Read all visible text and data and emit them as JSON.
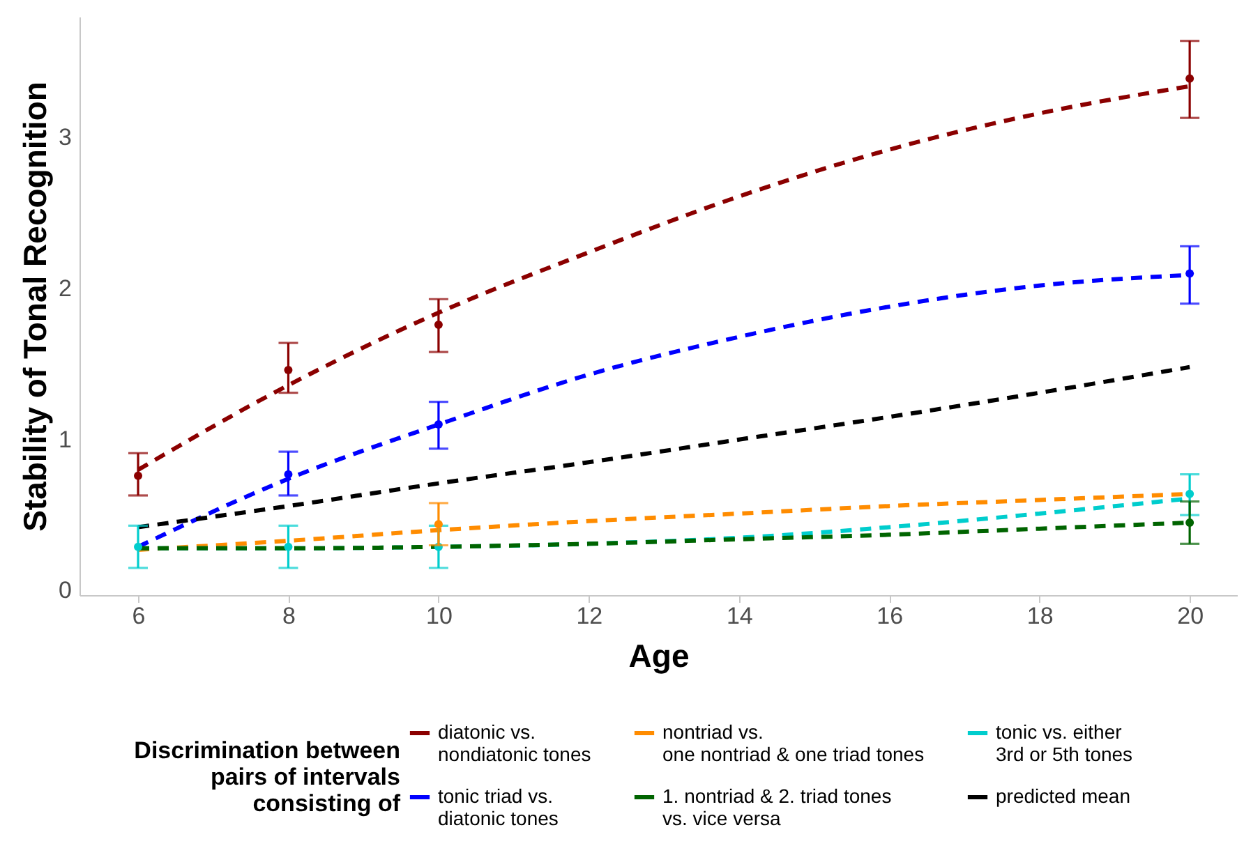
{
  "chart_data": {
    "type": "line",
    "xlabel": "Age",
    "ylabel": "Stability of Tonal Recognition",
    "legend_title": "Discrimination between pairs of intervals consisting of",
    "legend": "bottom",
    "grid": false,
    "xlim": [
      5.22,
      20.63
    ],
    "ylim": [
      -0.03,
      3.8
    ],
    "xticks": [
      6,
      8,
      10,
      12,
      14,
      16,
      18,
      20
    ],
    "yticks": [
      0,
      1,
      2,
      3
    ],
    "series": [
      {
        "type": "line",
        "name": "diatonic vs.\nnondiatonic tones",
        "color": "#8b0000",
        "line_style": "dashed",
        "x": [
          6,
          8,
          10,
          12,
          14,
          16,
          18,
          20
        ],
        "values": [
          0.8,
          1.36,
          1.84,
          2.24,
          2.61,
          2.92,
          3.16,
          3.34
        ]
      },
      {
        "type": "line",
        "name": "nontriad vs.\none nontriad & one triad tones",
        "color": "#ff8c00",
        "line_style": "dashed",
        "x": [
          6,
          8,
          10,
          12,
          14,
          16,
          18,
          20
        ],
        "values": [
          0.27,
          0.33,
          0.4,
          0.46,
          0.51,
          0.56,
          0.6,
          0.64
        ]
      },
      {
        "type": "line",
        "name": "tonic vs. either\n3rd or 5th tones",
        "color": "#00cdcd",
        "line_style": "dashed",
        "x": [
          6,
          8,
          10,
          12,
          14,
          16,
          18,
          20
        ],
        "values": [
          0.28,
          0.28,
          0.29,
          0.31,
          0.35,
          0.42,
          0.51,
          0.61
        ]
      },
      {
        "type": "line",
        "name": "tonic triad vs.\ndiatonic tones",
        "color": "#0000ff",
        "line_style": "dashed",
        "x": [
          6,
          8,
          10,
          12,
          14,
          16,
          18,
          20
        ],
        "values": [
          0.29,
          0.74,
          1.1,
          1.43,
          1.68,
          1.88,
          2.02,
          2.09
        ]
      },
      {
        "type": "line",
        "name": "1. nontriad & 2. triad tones\nvs. vice versa",
        "color": "#006400",
        "line_style": "dashed",
        "x": [
          6,
          8,
          10,
          12,
          14,
          16,
          18,
          20
        ],
        "values": [
          0.28,
          0.28,
          0.29,
          0.31,
          0.34,
          0.37,
          0.41,
          0.45
        ]
      },
      {
        "type": "line",
        "name": "predicted mean",
        "color": "#000000",
        "line_style": "dashed",
        "x": [
          6,
          8,
          10,
          12,
          14,
          16,
          18,
          20
        ],
        "values": [
          0.42,
          0.56,
          0.71,
          0.85,
          1.0,
          1.15,
          1.31,
          1.48
        ]
      },
      {
        "type": "scatter",
        "color": "#8b0000",
        "marker": "circle",
        "x": [
          6,
          8,
          10,
          20
        ],
        "values": [
          0.76,
          1.46,
          1.76,
          3.39
        ],
        "errors": [
          [
            0.63,
            0.91
          ],
          [
            1.31,
            1.64
          ],
          [
            1.58,
            1.93
          ],
          [
            3.13,
            3.64
          ]
        ]
      },
      {
        "type": "scatter",
        "color": "#0000ff",
        "marker": "circle",
        "x": [
          8,
          10,
          20
        ],
        "values": [
          0.77,
          1.1,
          2.1
        ],
        "errors": [
          [
            0.63,
            0.92
          ],
          [
            0.94,
            1.25
          ],
          [
            1.9,
            2.28
          ]
        ]
      },
      {
        "type": "scatter",
        "color": "#00cdcd",
        "marker": "circle",
        "x": [
          6,
          8,
          10,
          20
        ],
        "values": [
          0.29,
          0.29,
          0.29,
          0.64
        ],
        "errors": [
          [
            0.15,
            0.43
          ],
          [
            0.15,
            0.43
          ],
          [
            0.15,
            0.43
          ],
          [
            0.5,
            0.77
          ]
        ]
      },
      {
        "type": "scatter",
        "color": "#ff8c00",
        "marker": "circle",
        "x": [
          10
        ],
        "values": [
          0.44
        ],
        "errors": [
          [
            0.3,
            0.58
          ]
        ]
      },
      {
        "type": "scatter",
        "color": "#006400",
        "marker": "circle",
        "x": [
          20
        ],
        "values": [
          0.45
        ],
        "errors": [
          [
            0.31,
            0.59
          ]
        ]
      }
    ]
  }
}
